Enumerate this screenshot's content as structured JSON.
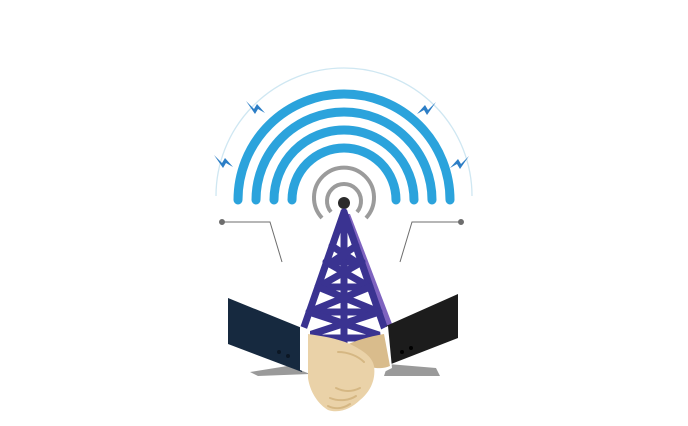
{
  "illustration": {
    "subject": "illustration",
    "icons": {
      "tower": "radio-tower-icon",
      "beacon": "beacon-icon",
      "waves": "signal-waves-icon",
      "bolts": "lightning-bolt-icon",
      "handshake": "handshake-icon"
    },
    "colors": {
      "background": "#ffffff",
      "signal_wave": "#2ba3dc",
      "outer_ring": "#bfe0ef",
      "beacon_ring": "#9b9b9b",
      "beacon_dot": "#2b2b2b",
      "tower_main": "#3a3391",
      "tower_shadow": "#7e63bf",
      "bolt": "#2c7ec6",
      "connector_line": "#6d6d6d",
      "sleeve_left": "#16293f",
      "sleeve_right": "#1c1c1c",
      "cuff": "#ffffff",
      "skin": "#ead2a8",
      "skin_shadow": "#d9bc8c",
      "shadow": "#9a9a9a"
    }
  }
}
